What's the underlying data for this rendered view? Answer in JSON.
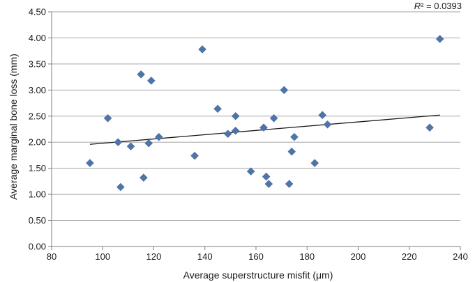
{
  "chart_data": {
    "type": "scatter",
    "title": "",
    "xlabel": "Average superstructure misfit (μm)",
    "ylabel": "Average marginal bone loss (mm)",
    "xlim": [
      80,
      240
    ],
    "ylim": [
      0,
      4.5
    ],
    "x_ticks": [
      "80",
      "100",
      "120",
      "140",
      "160",
      "180",
      "200",
      "220",
      "240"
    ],
    "y_ticks": [
      "0.00",
      "0.50",
      "1.00",
      "1.50",
      "2.00",
      "2.50",
      "3.00",
      "3.50",
      "4.00",
      "4.50"
    ],
    "grid": "horizontal",
    "marker": "diamond",
    "marker_color": "#4f75a8",
    "trendline_color": "#1a1a1a",
    "r_squared_label": {
      "symbol": "R",
      "suffix": "² = 0.0393"
    },
    "trendline": {
      "x": [
        95,
        232
      ],
      "y": [
        1.96,
        2.52
      ]
    },
    "points": [
      {
        "x": 95,
        "y": 1.6
      },
      {
        "x": 102,
        "y": 2.46
      },
      {
        "x": 106,
        "y": 2.0
      },
      {
        "x": 107,
        "y": 1.14
      },
      {
        "x": 111,
        "y": 1.92
      },
      {
        "x": 115,
        "y": 3.3
      },
      {
        "x": 116,
        "y": 1.32
      },
      {
        "x": 118,
        "y": 1.98
      },
      {
        "x": 119,
        "y": 3.18
      },
      {
        "x": 122,
        "y": 2.1
      },
      {
        "x": 136,
        "y": 1.74
      },
      {
        "x": 139,
        "y": 3.78
      },
      {
        "x": 145,
        "y": 2.64
      },
      {
        "x": 149,
        "y": 2.16
      },
      {
        "x": 152,
        "y": 2.5
      },
      {
        "x": 152,
        "y": 2.22
      },
      {
        "x": 158,
        "y": 1.44
      },
      {
        "x": 163,
        "y": 2.28
      },
      {
        "x": 164,
        "y": 1.34
      },
      {
        "x": 165,
        "y": 1.2
      },
      {
        "x": 167,
        "y": 2.46
      },
      {
        "x": 171,
        "y": 3.0
      },
      {
        "x": 173,
        "y": 1.2
      },
      {
        "x": 174,
        "y": 1.82
      },
      {
        "x": 175,
        "y": 2.1
      },
      {
        "x": 183,
        "y": 1.6
      },
      {
        "x": 186,
        "y": 2.52
      },
      {
        "x": 188,
        "y": 2.34
      },
      {
        "x": 228,
        "y": 2.28
      },
      {
        "x": 232,
        "y": 3.98
      }
    ]
  }
}
